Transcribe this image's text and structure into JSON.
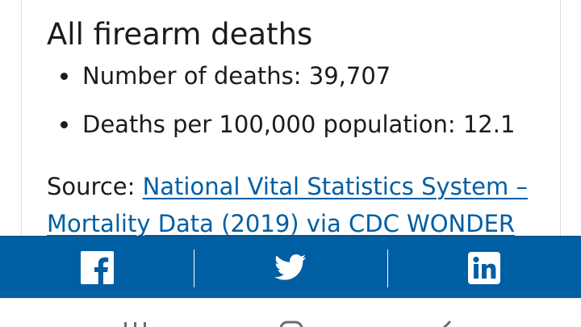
{
  "section": {
    "heading": "All firearm deaths",
    "stats": [
      "Number of deaths: 39,707",
      "Deaths per 100,000 population: 12.1"
    ]
  },
  "source": {
    "label": "Source: ",
    "link_text": "National Vital Statistics System – Mortality Data (2019) via CDC WONDER"
  },
  "share_bar": {
    "background_color": "#005ea2",
    "buttons": [
      {
        "icon": "facebook-icon"
      },
      {
        "icon": "twitter-icon"
      },
      {
        "icon": "linkedin-icon"
      }
    ]
  },
  "colors": {
    "link": "#005ea2",
    "text": "#1b1b1b"
  }
}
